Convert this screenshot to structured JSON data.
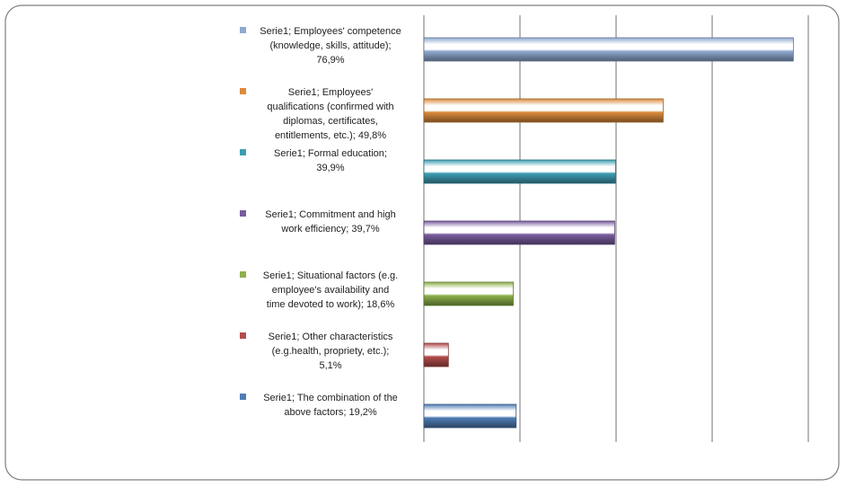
{
  "chart_data": {
    "type": "bar",
    "orientation": "horizontal",
    "grid": true,
    "xlim": [
      0,
      100
    ],
    "series": [
      {
        "name": "Serie1",
        "values": [
          76.9,
          49.8,
          39.9,
          39.7,
          18.6,
          5.1,
          19.2
        ]
      }
    ],
    "categories": [
      "Employees' competence (knowledge, skills, attitude)",
      "Employees' qualifications (confirmed with diplomas, certificates, entitlements, etc.)",
      "Formal education",
      "Commitment and high work efficiency",
      "Situational factors (e.g. employee's availability and time devoted to work)",
      "Other characteristics (e.g.health, propriety, etc.)",
      "The combination of the above factors"
    ],
    "colors": [
      "#8EA9CF",
      "#DB8A3C",
      "#3E9DB3",
      "#7A5C9E",
      "#8CB04A",
      "#B34D4D",
      "#4F7DB4"
    ],
    "data_labels": [
      [
        "Serie1; Employees' competence",
        "(knowledge, skills, attitude);",
        "76,9%"
      ],
      [
        "Serie1; Employees'",
        "qualifications (confirmed with",
        "diplomas, certificates,",
        "entitlements, etc.); 49,8%"
      ],
      [
        "Serie1; Formal education;",
        "39,9%"
      ],
      [
        "Serie1; Commitment and high",
        "work efficiency; 39,7%"
      ],
      [
        "Serie1; Situational factors (e.g.",
        "employee's availability and",
        "time devoted to work); 18,6%"
      ],
      [
        "Serie1; Other characteristics",
        "(e.g.health, propriety, etc.);",
        "5,1%"
      ],
      [
        "Serie1; The combination of the",
        "above factors; 19,2%"
      ]
    ]
  }
}
